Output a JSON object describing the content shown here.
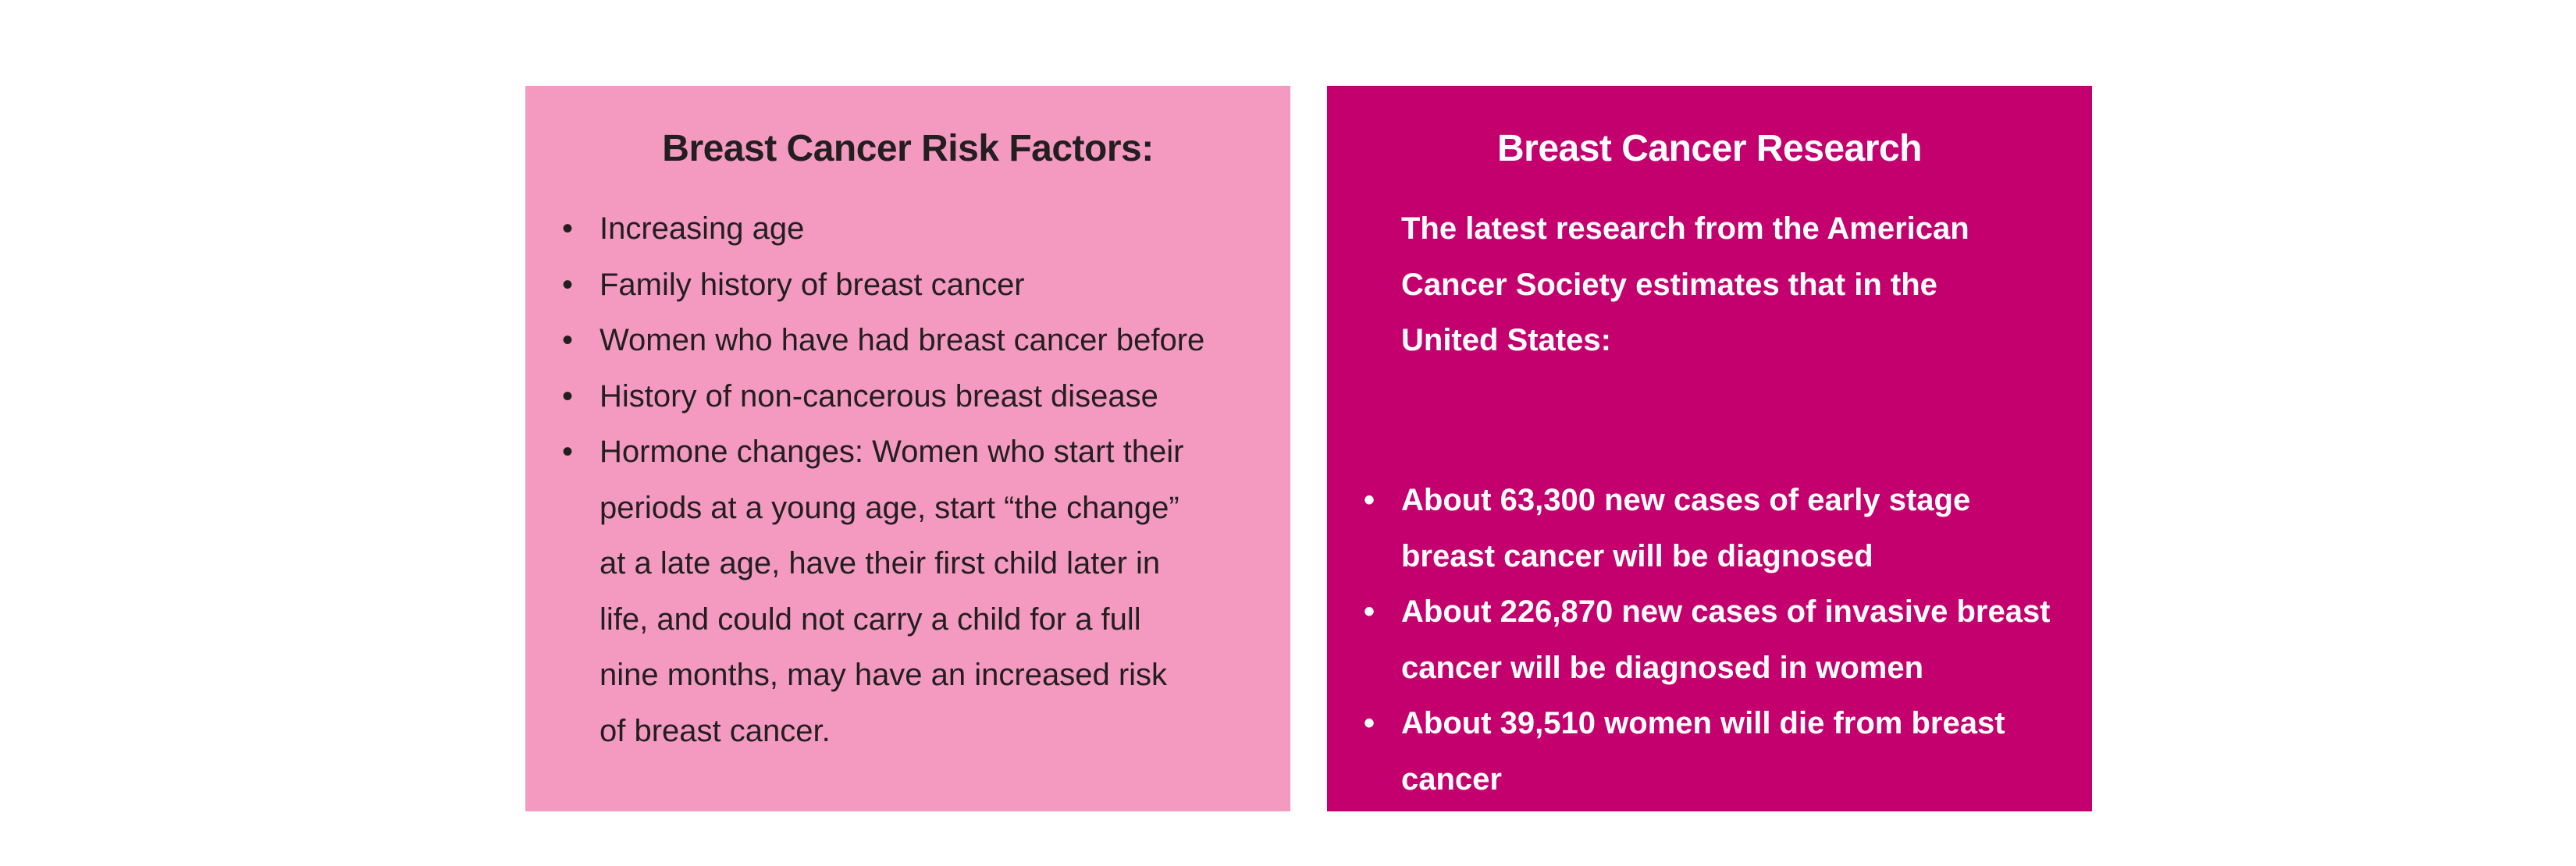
{
  "risk_card": {
    "title": "Breast Cancer Risk Factors:",
    "bullet_symbol": "•",
    "items": [
      {
        "text": "Increasing age"
      },
      {
        "text": "Family history of breast cancer"
      },
      {
        "text": "Women who have had breast cancer before"
      },
      {
        "text": "History of non-cancerous breast disease"
      },
      {
        "text": "Hormone changes: Women who start their periods at a young age, start “the change” at a late age, have their first child later in life, and could not carry a child for a full nine months, may have an increased risk of breast cancer."
      }
    ],
    "colors": {
      "background": "#f49ac1",
      "text": "#231f20"
    }
  },
  "research_card": {
    "title": "Breast Cancer Research",
    "intro": "The latest research from the American Cancer Society estimates that in the United States:",
    "bullet_symbol": "•",
    "items": [
      {
        "text": "About 63,300 new cases of early stage breast cancer will be diagnosed"
      },
      {
        "text": "About 226,870 new cases of invasive breast cancer will be diagnosed in women"
      },
      {
        "text": "About 39,510 women will die from breast cancer"
      }
    ],
    "colors": {
      "background": "#c4006e",
      "text": "#ffffff"
    }
  }
}
